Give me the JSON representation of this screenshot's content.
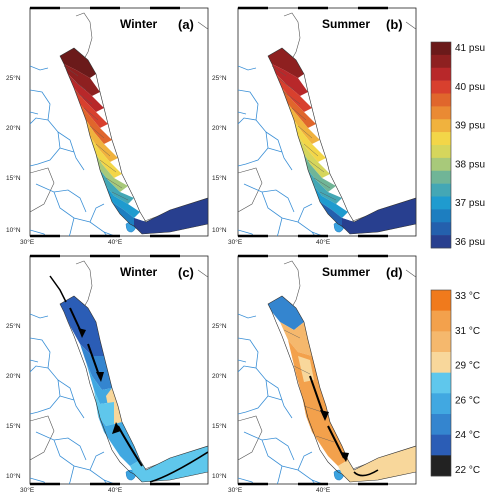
{
  "panels": [
    {
      "id": "a",
      "season": "Winter",
      "label": "(a)",
      "variable": "salinity"
    },
    {
      "id": "b",
      "season": "Summer",
      "label": "(b)",
      "variable": "salinity"
    },
    {
      "id": "c",
      "season": "Winter",
      "label": "(c)",
      "variable": "temperature"
    },
    {
      "id": "d",
      "season": "Summer",
      "label": "(d)",
      "variable": "temperature"
    }
  ],
  "lat_labels": [
    "25°N",
    "20°N",
    "15°N",
    "10°N"
  ],
  "lon_labels": [
    "30°E",
    "40°E"
  ],
  "salinity_colorbar": {
    "labels": [
      "41 psu",
      "40 psu",
      "39 psu",
      "38 psu",
      "37 psu",
      "36 psu"
    ],
    "colors": [
      "#6b1a1a",
      "#8e2020",
      "#b8282a",
      "#d8402e",
      "#e0662c",
      "#ea8a33",
      "#f0b23e",
      "#f3d648",
      "#d6d65c",
      "#a8c97a",
      "#70b597",
      "#44a7b5",
      "#1f9bcf",
      "#1d7ec0",
      "#2460ad",
      "#283f8f"
    ]
  },
  "temperature_colorbar": {
    "labels": [
      "33 °C",
      "31 °C",
      "29 °C",
      "26 °C",
      "24 °C",
      "22 °C"
    ],
    "colors": [
      "#f07a1c",
      "#f3a14c",
      "#f5b86d",
      "#f8d79b",
      "#5fc7ec",
      "#41a8e1",
      "#3485cf",
      "#2b5db6",
      "#222222"
    ]
  }
}
